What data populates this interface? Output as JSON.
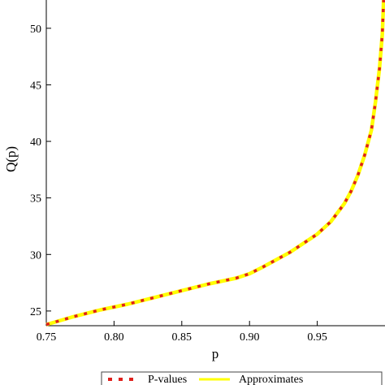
{
  "chart_data": {
    "type": "line",
    "xlabel": "p",
    "ylabel": "Q(p)",
    "xlim": [
      0.75,
      1.0
    ],
    "ylim": [
      23.7,
      52.5
    ],
    "x_ticks": [
      "0.75",
      "0.80",
      "0.85",
      "0.90",
      "0.95"
    ],
    "x_tick_values": [
      0.75,
      0.8,
      0.85,
      0.9,
      0.95
    ],
    "y_ticks": [
      "25",
      "30",
      "35",
      "40",
      "45",
      "50"
    ],
    "y_tick_values": [
      25,
      30,
      35,
      40,
      45,
      50
    ],
    "grid": false,
    "legend_placement": "bottom",
    "series": [
      {
        "name": "P-values",
        "style": "dotted-squares",
        "color": "#e0201c",
        "x": [
          0.75,
          0.77,
          0.79,
          0.81,
          0.83,
          0.85,
          0.87,
          0.89,
          0.9,
          0.91,
          0.93,
          0.95,
          0.96,
          0.97,
          0.975,
          0.98,
          0.985,
          0.99,
          0.993,
          0.996,
          0.998,
          0.999
        ],
        "values": [
          23.8,
          24.5,
          25.1,
          25.6,
          26.2,
          26.8,
          27.4,
          27.9,
          28.3,
          28.9,
          30.2,
          31.8,
          32.9,
          34.5,
          35.6,
          37.0,
          38.8,
          41.0,
          43.5,
          46.5,
          49.5,
          52.5
        ]
      },
      {
        "name": "Approximates",
        "style": "solid",
        "color": "#ffff00",
        "x": [
          0.75,
          0.77,
          0.79,
          0.81,
          0.83,
          0.85,
          0.87,
          0.89,
          0.9,
          0.91,
          0.93,
          0.95,
          0.96,
          0.97,
          0.975,
          0.98,
          0.985,
          0.99,
          0.993,
          0.996,
          0.998,
          0.999
        ],
        "values": [
          23.8,
          24.5,
          25.1,
          25.6,
          26.2,
          26.8,
          27.4,
          27.9,
          28.3,
          28.9,
          30.2,
          31.8,
          32.9,
          34.5,
          35.6,
          37.0,
          38.8,
          41.0,
          43.5,
          46.5,
          49.5,
          52.5
        ]
      }
    ]
  }
}
